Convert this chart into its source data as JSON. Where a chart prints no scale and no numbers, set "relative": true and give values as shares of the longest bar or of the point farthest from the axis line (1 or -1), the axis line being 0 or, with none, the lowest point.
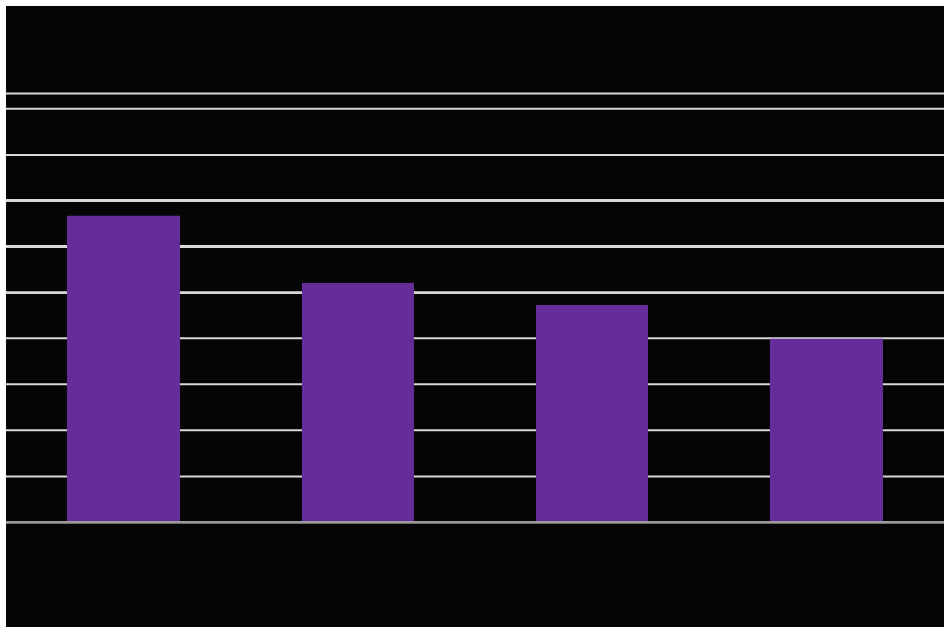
{
  "chart_data": {
    "type": "bar",
    "relative": true,
    "categories": [
      null,
      null,
      null,
      null
    ],
    "values": [
      1,
      0.78,
      0.71,
      0.6
    ],
    "color": "#662d9a",
    "grid": "y"
  }
}
